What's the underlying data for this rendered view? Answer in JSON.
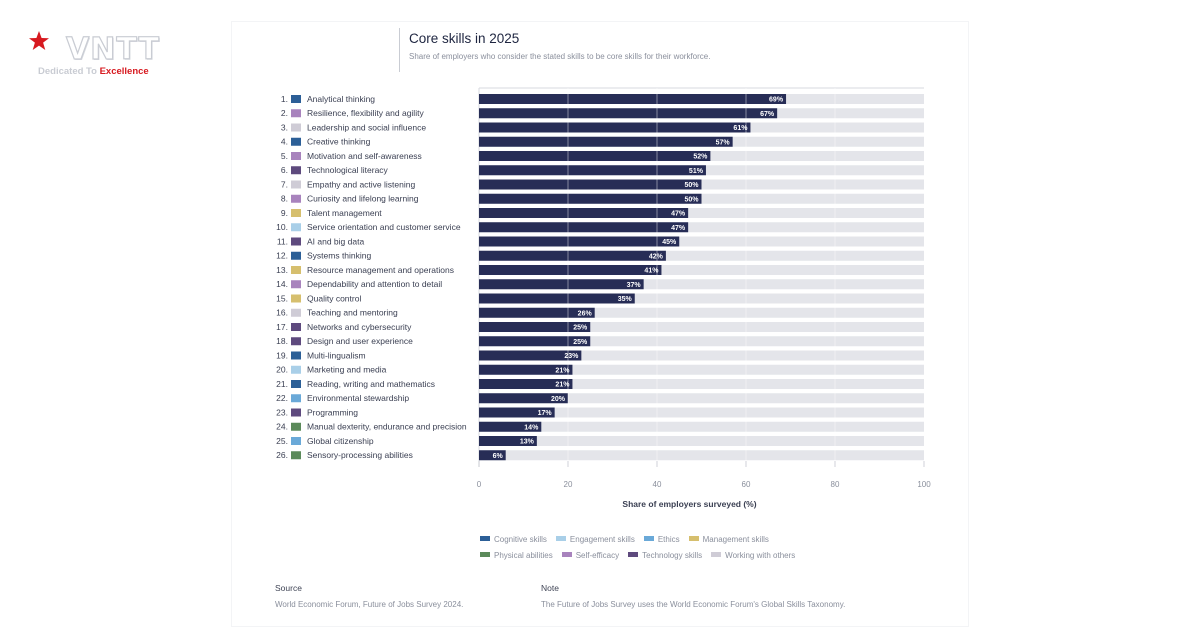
{
  "brand": {
    "name": "VNTT",
    "tagline_a": "Dedicated To",
    "tagline_b": "Excellence",
    "star_color": "#d7191f"
  },
  "title": "Core skills in 2025",
  "subtitle": "Share of employers who consider the stated skills to be core skills for their workforce.",
  "category_colors": {
    "Cognitive skills": "#2c5f97",
    "Engagement skills": "#a9cfe8",
    "Ethics": "#6aa9d8",
    "Management skills": "#d6bf6e",
    "Physical abilities": "#5b8a5a",
    "Self-efficacy": "#a883bd",
    "Technology skills": "#5e4a7e",
    "Working with others": "#cfccd6"
  },
  "chart_data": {
    "type": "bar",
    "orientation": "horizontal",
    "xlabel": "Share of employers surveyed (%)",
    "xlim": [
      0,
      100
    ],
    "xticks": [
      0,
      20,
      40,
      60,
      80,
      100
    ],
    "bar_color": "#272d56",
    "background_bar_color": "#e4e5ea",
    "categories": [
      {
        "rank": "1.",
        "label": "Analytical thinking",
        "value": 69,
        "value_label": "69%",
        "category": "Cognitive skills"
      },
      {
        "rank": "2.",
        "label": "Resilience, flexibility and agility",
        "value": 67,
        "value_label": "67%",
        "category": "Self-efficacy"
      },
      {
        "rank": "3.",
        "label": "Leadership and social influence",
        "value": 61,
        "value_label": "61%",
        "category": "Working with others"
      },
      {
        "rank": "4.",
        "label": "Creative thinking",
        "value": 57,
        "value_label": "57%",
        "category": "Cognitive skills"
      },
      {
        "rank": "5.",
        "label": "Motivation and self-awareness",
        "value": 52,
        "value_label": "52%",
        "category": "Self-efficacy"
      },
      {
        "rank": "6.",
        "label": "Technological literacy",
        "value": 51,
        "value_label": "51%",
        "category": "Technology skills"
      },
      {
        "rank": "7.",
        "label": "Empathy and active listening",
        "value": 50,
        "value_label": "50%",
        "category": "Working with others"
      },
      {
        "rank": "8.",
        "label": "Curiosity and lifelong learning",
        "value": 50,
        "value_label": "50%",
        "category": "Self-efficacy"
      },
      {
        "rank": "9.",
        "label": "Talent management",
        "value": 47,
        "value_label": "47%",
        "category": "Management skills"
      },
      {
        "rank": "10.",
        "label": "Service orientation and customer service",
        "value": 47,
        "value_label": "47%",
        "category": "Engagement skills"
      },
      {
        "rank": "11.",
        "label": "AI and big data",
        "value": 45,
        "value_label": "45%",
        "category": "Technology skills"
      },
      {
        "rank": "12.",
        "label": "Systems thinking",
        "value": 42,
        "value_label": "42%",
        "category": "Cognitive skills"
      },
      {
        "rank": "13.",
        "label": "Resource management and operations",
        "value": 41,
        "value_label": "41%",
        "category": "Management skills"
      },
      {
        "rank": "14.",
        "label": "Dependability and attention to detail",
        "value": 37,
        "value_label": "37%",
        "category": "Self-efficacy"
      },
      {
        "rank": "15.",
        "label": "Quality control",
        "value": 35,
        "value_label": "35%",
        "category": "Management skills"
      },
      {
        "rank": "16.",
        "label": "Teaching and mentoring",
        "value": 26,
        "value_label": "26%",
        "category": "Working with others"
      },
      {
        "rank": "17.",
        "label": "Networks and cybersecurity",
        "value": 25,
        "value_label": "25%",
        "category": "Technology skills"
      },
      {
        "rank": "18.",
        "label": "Design and user experience",
        "value": 25,
        "value_label": "25%",
        "category": "Technology skills"
      },
      {
        "rank": "19.",
        "label": "Multi-lingualism",
        "value": 23,
        "value_label": "23%",
        "category": "Cognitive skills"
      },
      {
        "rank": "20.",
        "label": "Marketing and media",
        "value": 21,
        "value_label": "21%",
        "category": "Engagement skills"
      },
      {
        "rank": "21.",
        "label": "Reading, writing and mathematics",
        "value": 21,
        "value_label": "21%",
        "category": "Cognitive skills"
      },
      {
        "rank": "22.",
        "label": "Environmental stewardship",
        "value": 20,
        "value_label": "20%",
        "category": "Ethics"
      },
      {
        "rank": "23.",
        "label": "Programming",
        "value": 17,
        "value_label": "17%",
        "category": "Technology skills"
      },
      {
        "rank": "24.",
        "label": "Manual dexterity, endurance and precision",
        "value": 14,
        "value_label": "14%",
        "category": "Physical abilities"
      },
      {
        "rank": "25.",
        "label": "Global citizenship",
        "value": 13,
        "value_label": "13%",
        "category": "Ethics"
      },
      {
        "rank": "26.",
        "label": "Sensory-processing abilities",
        "value": 6,
        "value_label": "6%",
        "category": "Physical abilities"
      }
    ],
    "legend": [
      "Cognitive skills",
      "Engagement skills",
      "Ethics",
      "Management skills",
      "Physical abilities",
      "Self-efficacy",
      "Technology skills",
      "Working with others"
    ]
  },
  "source": {
    "heading": "Source",
    "text": "World Economic Forum, Future of Jobs Survey 2024."
  },
  "note": {
    "heading": "Note",
    "text": "The Future of Jobs Survey uses the World Economic Forum's Global Skills Taxonomy."
  }
}
